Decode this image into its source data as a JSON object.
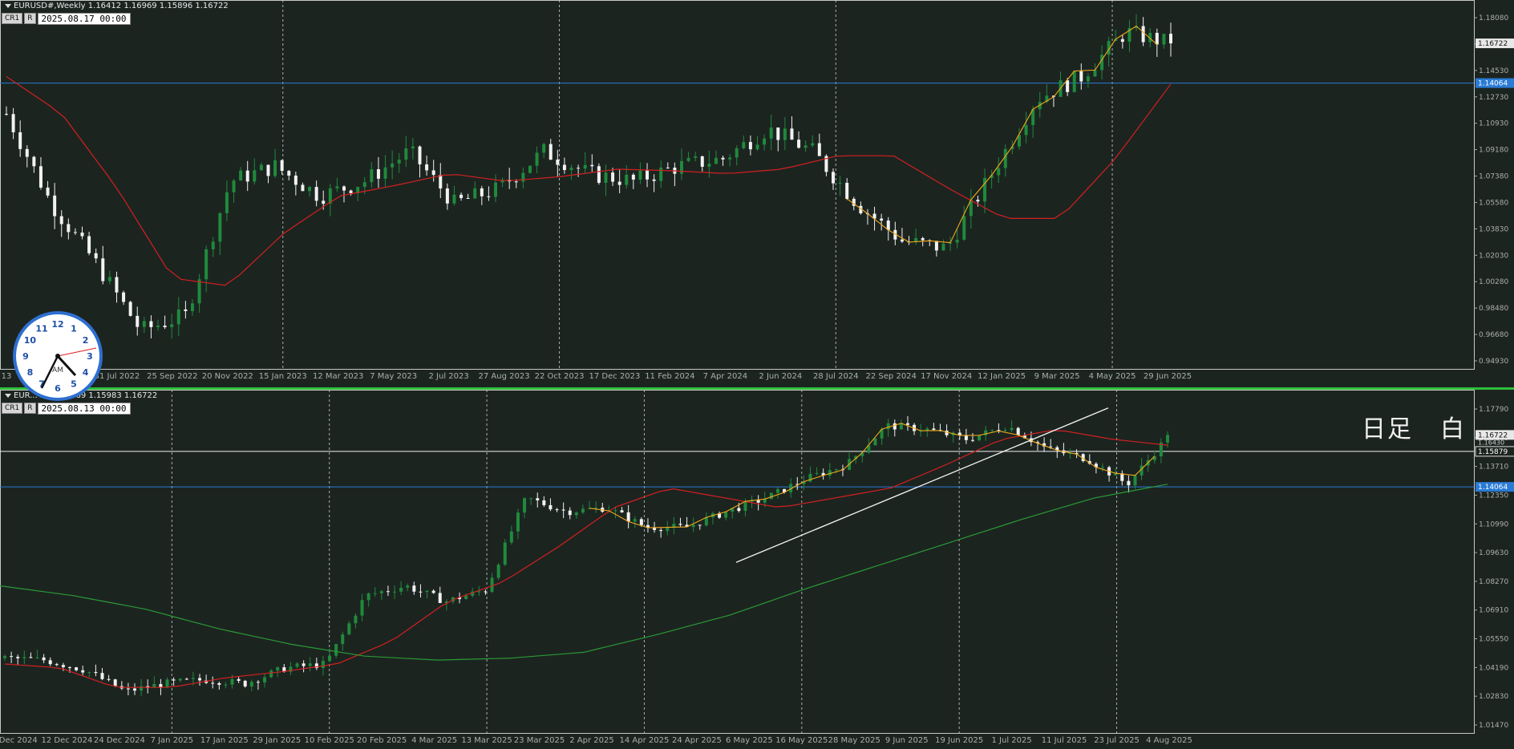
{
  "colors": {
    "bg": "#1c2420",
    "bull": "#1f8a3c",
    "bear": "#f2f2f2",
    "ma_red": "#d32020",
    "ma_green": "#2a9a35",
    "zigzag": "#f0a91b",
    "hline_blue": "#2a7bd6",
    "axis": "#aab0ad"
  },
  "top_panel": {
    "header": "EURUSD#,Weekly  1.16412 1.16969 1.15896 1.16722",
    "tag_a": "CR1",
    "tag_b": "R",
    "date": "2025.08.17 00:00",
    "price_labels": [
      "1.18080",
      "1.16280",
      "1.14530",
      "1.12730",
      "1.10930",
      "1.09180",
      "1.07380",
      "1.05580",
      "1.03830",
      "1.02030",
      "1.00280",
      "0.98480",
      "0.96680",
      "0.94930"
    ],
    "current_price": "1.16722",
    "line_price": "1.14064",
    "time_labels": [
      "13",
      "5 Jun 2022",
      "31 Jul 2022",
      "25 Sep 2022",
      "20 Nov 2022",
      "15 Jan 2023",
      "12 Mar 2023",
      "7 May 2023",
      "2 Jul 2023",
      "27 Aug 2023",
      "22 Oct 2023",
      "17 Dec 2023",
      "11 Feb 2024",
      "7 Apr 2024",
      "2 Jun 2024",
      "28 Jul 2024",
      "22 Sep 2024",
      "17 Nov 2024",
      "12 Jan 2025",
      "9 Mar 2025",
      "4 May 2025",
      "29 Jun 2025"
    ]
  },
  "bottom_panel": {
    "header": "EUR... 59 1.16969 1.15983 1.16722",
    "tag_a": "CR1",
    "tag_b": "R",
    "date": "2025.08.13 00:00",
    "price_labels": [
      "1.17790",
      "1.15070",
      "1.13710",
      "1.12350",
      "1.10990",
      "1.09630",
      "1.08270",
      "1.06910",
      "1.05550",
      "1.04190",
      "1.02830",
      "1.01470"
    ],
    "current_price": "1.16722",
    "price_b": "1.16430",
    "white_line_price": "1.15879",
    "line_price": "1.14064",
    "time_labels": [
      "2 Dec 2024",
      "12 Dec 2024",
      "24 Dec 2024",
      "7 Jan 2025",
      "17 Jan 2025",
      "29 Jan 2025",
      "10 Feb 2025",
      "20 Feb 2025",
      "4 Mar 2025",
      "13 Mar 2025",
      "23 Mar 2025",
      "2 Apr 2025",
      "14 Apr 2025",
      "24 Apr 2025",
      "6 May 2025",
      "16 May 2025",
      "28 May 2025",
      "9 Jun 2025",
      "19 Jun 2025",
      "1 Jul 2025",
      "11 Jul 2025",
      "23 Jul 2025",
      "4 Aug 2025"
    ],
    "label_left": "日足",
    "label_right": "白"
  },
  "chart_data": [
    {
      "type": "candlestick",
      "title": "EURUSD#,Weekly",
      "ylim": [
        0.9493,
        1.1898
      ],
      "x": [
        "13",
        "5 Jun 2022",
        "31 Jul 2022",
        "25 Sep 2022",
        "20 Nov 2022",
        "15 Jan 2023",
        "12 Mar 2023",
        "7 May 2023",
        "2 Jul 2023",
        "27 Aug 2023",
        "22 Oct 2023",
        "17 Dec 2023",
        "11 Feb 2024",
        "7 Apr 2024",
        "2 Jun 2024",
        "28 Jul 2024",
        "22 Sep 2024",
        "17 Nov 2024",
        "12 Jan 2025",
        "9 Mar 2025",
        "4 May 2025",
        "29 Jun 2025"
      ],
      "close_path": [
        1.12,
        1.06,
        1.02,
        0.975,
        0.985,
        1.075,
        1.085,
        1.065,
        1.075,
        1.095,
        1.06,
        1.07,
        1.095,
        1.08,
        1.075,
        1.085,
        1.09,
        1.11,
        1.095,
        1.06,
        1.035,
        1.03,
        1.08,
        1.13,
        1.145,
        1.175,
        1.167
      ],
      "ma_path": [
        1.145,
        1.12,
        1.07,
        1.01,
        1.005,
        1.04,
        1.065,
        1.072,
        1.08,
        1.075,
        1.078,
        1.083,
        1.082,
        1.08,
        1.083,
        1.092,
        1.092,
        1.07,
        1.05,
        1.05,
        1.09,
        1.14
      ],
      "last": 1.16722,
      "hline": 1.14064
    },
    {
      "type": "candlestick",
      "title": "日足",
      "ylim": [
        1.0147,
        1.1846
      ],
      "x": [
        "2 Dec 2024",
        "12 Dec 2024",
        "24 Dec 2024",
        "7 Jan 2025",
        "17 Jan 2025",
        "29 Jan 2025",
        "10 Feb 2025",
        "20 Feb 2025",
        "4 Mar 2025",
        "13 Mar 2025",
        "23 Mar 2025",
        "2 Apr 2025",
        "14 Apr 2025",
        "24 Apr 2025",
        "6 May 2025",
        "16 May 2025",
        "28 May 2025",
        "9 Jun 2025",
        "19 Jun 2025",
        "1 Jul 2025",
        "11 Jul 2025",
        "23 Jul 2025",
        "4 Aug 2025"
      ],
      "close_path": [
        1.053,
        1.052,
        1.047,
        1.036,
        1.04,
        1.042,
        1.04,
        1.048,
        1.05,
        1.085,
        1.09,
        1.082,
        1.088,
        1.135,
        1.128,
        1.13,
        1.12,
        1.12,
        1.128,
        1.135,
        1.145,
        1.152,
        1.172,
        1.17,
        1.165,
        1.172,
        1.16,
        1.155,
        1.142,
        1.166
      ],
      "ma_red_path": [
        1.05,
        1.048,
        1.038,
        1.038,
        1.043,
        1.046,
        1.05,
        1.062,
        1.082,
        1.092,
        1.11,
        1.13,
        1.14,
        1.135,
        1.13,
        1.135,
        1.14,
        1.152,
        1.165,
        1.17,
        1.165,
        1.162
      ],
      "ma_green_path": [
        1.09,
        1.085,
        1.078,
        1.068,
        1.06,
        1.054,
        1.052,
        1.053,
        1.056,
        1.065,
        1.075,
        1.088,
        1.1,
        1.112,
        1.124,
        1.135,
        1.142
      ],
      "trendline": [
        [
          1.102,
          0.0
        ],
        [
          1.181,
          1.0
        ]
      ],
      "last": 1.16722,
      "hline_white": 1.15879,
      "hline_blue": 1.14064
    }
  ]
}
